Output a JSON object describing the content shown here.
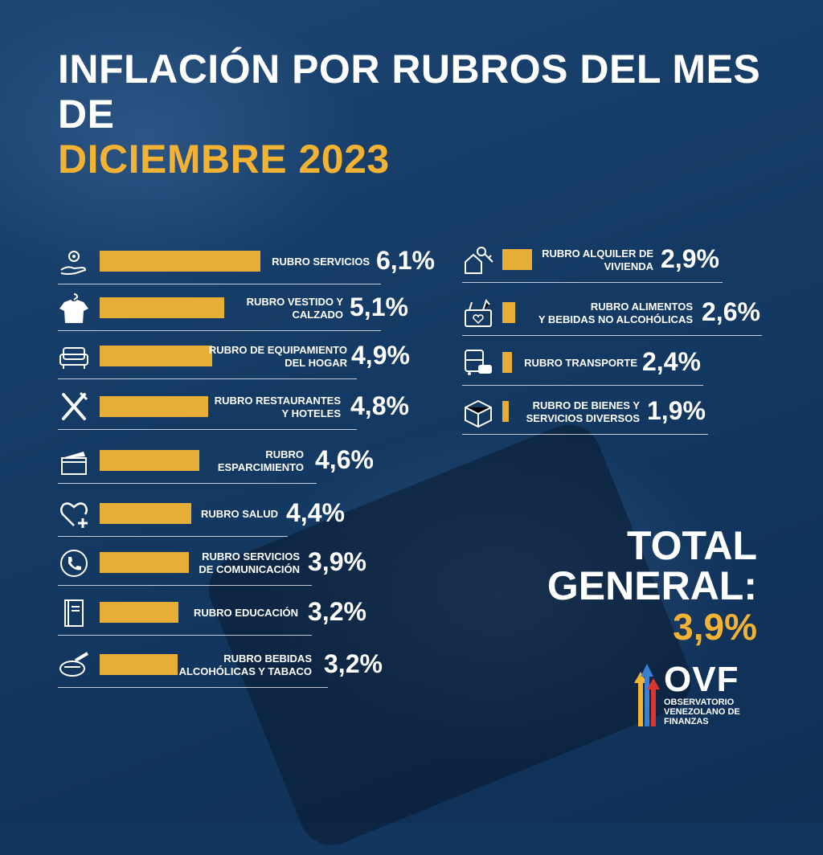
{
  "title_line1": "INFLACIÓN POR RUBROS DEL MES DE",
  "title_line2": "DICIEMBRE 2023",
  "colors": {
    "bar": "#e7ae37",
    "accent": "#f2b233",
    "background": "#12365f",
    "text": "#ffffff"
  },
  "chart_data": {
    "type": "bar",
    "orientation": "horizontal",
    "unit": "%",
    "categories": [
      "RUBRO SERVICIOS",
      "RUBRO VESTIDO Y CALZADO",
      "RUBRO DE EQUIPAMIENTO DEL HOGAR",
      "RUBRO RESTAURANTES Y HOTELES",
      "RUBRO ESPARCIMIENTO",
      "RUBRO SALUD",
      "RUBRO SERVICIOS DE COMUNICACIÓN",
      "RUBRO EDUCACIÓN",
      "RUBRO BEBIDAS ALCOHÓLICAS Y TABACO",
      "RUBRO ALQUILER DE VIVIENDA",
      "RUBRO ALIMENTOS Y BEBIDAS NO ALCOHÓLICAS",
      "RUBRO TRANSPORTE",
      "RUBRO DE BIENES Y SERVICIOS DIVERSOS"
    ],
    "values": [
      6.1,
      5.1,
      4.9,
      4.8,
      4.6,
      4.4,
      3.9,
      3.2,
      3.2,
      2.9,
      2.6,
      2.4,
      1.9
    ],
    "value_labels": [
      "6,1%",
      "5,1%",
      "4,9%",
      "4,8%",
      "4,6%",
      "4,4%",
      "3,9%",
      "3,2%",
      "3,2%",
      "2,9%",
      "2,6%",
      "2,4%",
      "1,9%"
    ],
    "legend": "none",
    "grid": false
  },
  "rows": [
    {
      "label": "RUBRO SERVICIOS",
      "value": "6,1%",
      "icon": "gear-hand-icon"
    },
    {
      "label": "RUBRO VESTIDO Y\nCALZADO",
      "value": "5,1%",
      "icon": "shirt-hanger-icon"
    },
    {
      "label": "RUBRO DE EQUIPAMIENTO\nDEL HOGAR",
      "value": "4,9%",
      "icon": "sofa-icon"
    },
    {
      "label": "RUBRO RESTAURANTES\nY HOTELES",
      "value": "4,8%",
      "icon": "fork-knife-icon"
    },
    {
      "label": "RUBRO\nESPARCIMIENTO",
      "value": "4,6%",
      "icon": "clapperboard-icon"
    },
    {
      "label": "RUBRO SALUD",
      "value": "4,4%",
      "icon": "heart-cross-icon"
    },
    {
      "label": "RUBRO SERVICIOS\nDE COMUNICACIÓN",
      "value": "3,9%",
      "icon": "phone-icon"
    },
    {
      "label": "RUBRO EDUCACIÓN",
      "value": "3,2%",
      "icon": "book-icon"
    },
    {
      "label": "RUBRO BEBIDAS\nALCOHÓLICAS Y TABACO",
      "value": "3,2%",
      "icon": "ashtray-icon"
    },
    {
      "label": "RUBRO ALQUILER DE\nVIVIENDA",
      "value": "2,9%",
      "icon": "house-key-icon"
    },
    {
      "label": "RUBRO ALIMENTOS\nY BEBIDAS NO ALCOHÓLICAS",
      "value": "2,6%",
      "icon": "grocery-basket-icon"
    },
    {
      "label": "RUBRO TRANSPORTE",
      "value": "2,4%",
      "icon": "bus-car-icon"
    },
    {
      "label": "RUBRO DE BIENES Y\nSERVICIOS DIVERSOS",
      "value": "1,9%",
      "icon": "box-icon"
    }
  ],
  "total": {
    "label": "TOTAL\nGENERAL:",
    "value": "3,9%"
  },
  "logo": {
    "name": "OVF",
    "subtitle": "OBSERVATORIO\nVENEZOLANO DE\nFINANZAS"
  }
}
